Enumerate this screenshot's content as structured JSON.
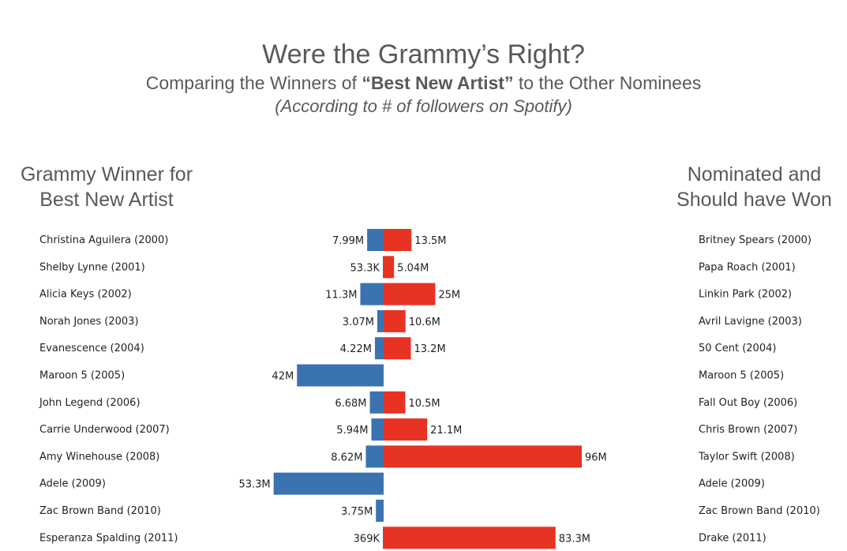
{
  "header": {
    "title": "Were the Grammy’s Right?",
    "subtitle_pre": "Comparing the Winners of ",
    "subtitle_bold": "“Best New Artist”",
    "subtitle_post": " to the Other Nominees",
    "note": "(According to # of followers on Spotify)"
  },
  "left_heading": "Grammy Winner for Best New Artist",
  "right_heading": "Nominated and Should have Won",
  "colors": {
    "winner": "#3b73b0",
    "nominee": "#e63323",
    "text": "#595959"
  },
  "chart_data": {
    "type": "bar",
    "orientation": "diverging-horizontal",
    "series": [
      {
        "role": "winner",
        "labels": [
          "Christina Aguilera (2000)",
          "Shelby Lynne (2001)",
          "Alicia Keys (2002)",
          "Norah Jones (2003)",
          "Evanescence (2004)",
          "Maroon 5 (2005)",
          "John Legend (2006)",
          "Carrie Underwood (2007)",
          "Amy Winehouse (2008)",
          "Adele (2009)",
          "Zac Brown Band (2010)",
          "Esperanza Spalding (2011)"
        ],
        "values": [
          7990000,
          53300,
          11300000,
          3070000,
          4220000,
          42000000,
          6680000,
          5940000,
          8620000,
          53300000,
          3750000,
          369000
        ],
        "value_labels": [
          "7.99M",
          "53.3K",
          "11.3M",
          "3.07M",
          "4.22M",
          "42M",
          "6.68M",
          "5.94M",
          "8.62M",
          "53.3M",
          "3.75M",
          "369K"
        ]
      },
      {
        "role": "nominee",
        "labels": [
          "Britney Spears (2000)",
          "Papa Roach (2001)",
          "Linkin Park (2002)",
          "Avril Lavigne (2003)",
          "50 Cent (2004)",
          "Maroon 5 (2005)",
          "Fall Out Boy (2006)",
          "Chris Brown (2007)",
          "Taylor Swift (2008)",
          "Adele (2009)",
          "Zac Brown Band (2010)",
          "Drake (2011)"
        ],
        "values": [
          13500000,
          5040000,
          25000000,
          10600000,
          13200000,
          0,
          10500000,
          21100000,
          96000000,
          0,
          0,
          83300000
        ],
        "value_labels": [
          "13.5M",
          "5.04M",
          "25M",
          "10.6M",
          "13.2M",
          "",
          "10.5M",
          "21.1M",
          "96M",
          "",
          "",
          "83.3M"
        ]
      }
    ],
    "xlim": [
      0,
      96000000
    ],
    "grid": false
  }
}
